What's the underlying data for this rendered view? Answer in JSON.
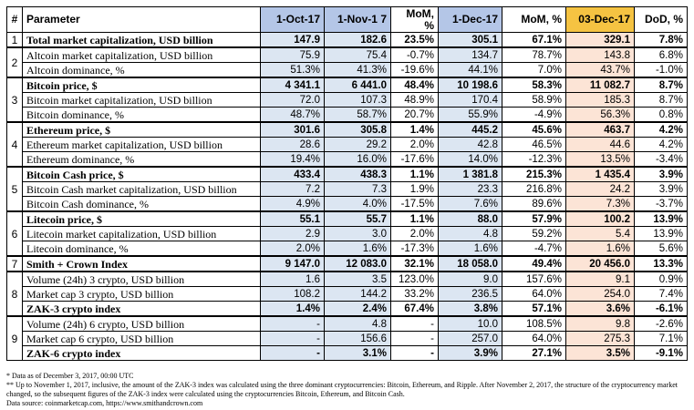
{
  "headers": [
    "#",
    "Parameter",
    "1-Oct-17",
    "1-Nov-17",
    "MoM, %",
    "1-Dec-17",
    "MoM, %",
    "03-Dec-17",
    "DoD, %"
  ],
  "header_display": [
    "#",
    "Parameter",
    "1-Oct-17",
    "1-Nov-1 7",
    "MoM, %",
    "1-Dec-17",
    "MoM, %",
    "03-Dec-17",
    "DoD, %"
  ],
  "colors": {
    "header_blue": "#b4c6e7",
    "body_blue": "#dce6f2",
    "header_orange": "#f5c342",
    "body_orange": "#fce4d6"
  },
  "groups": [
    {
      "num": "1",
      "rows": [
        {
          "param": "Total market capitalization, USD billion",
          "bold": true,
          "values": [
            "147.9",
            "182.6",
            "23.5%",
            "305.1",
            "67.1%",
            "329.1",
            "7.8%"
          ]
        }
      ]
    },
    {
      "num": "2",
      "rows": [
        {
          "param": "Altcoin market capitalization, USD billion",
          "bold": false,
          "values": [
            "75.9",
            "75.4",
            "-0.7%",
            "134.7",
            "78.7%",
            "143.8",
            "6.8%"
          ]
        },
        {
          "param": "Altcoin dominance, %",
          "bold": false,
          "values": [
            "51.3%",
            "41.3%",
            "-19.6%",
            "44.1%",
            "7.0%",
            "43.7%",
            "-1.0%"
          ]
        }
      ]
    },
    {
      "num": "3",
      "rows": [
        {
          "param": "Bitcoin price, $",
          "bold": true,
          "values": [
            "4 341.1",
            "6 441.0",
            "48.4%",
            "10 198.6",
            "58.3%",
            "11 082.7",
            "8.7%"
          ]
        },
        {
          "param": "Bitcoin market capitalization, USD billion",
          "bold": false,
          "values": [
            "72.0",
            "107.3",
            "48.9%",
            "170.4",
            "58.9%",
            "185.3",
            "8.7%"
          ]
        },
        {
          "param": "Bitcoin dominance, %",
          "bold": false,
          "values": [
            "48.7%",
            "58.7%",
            "20.7%",
            "55.9%",
            "-4.9%",
            "56.3%",
            "0.8%"
          ]
        }
      ]
    },
    {
      "num": "4",
      "rows": [
        {
          "param": "Ethereum price, $",
          "bold": true,
          "values": [
            "301.6",
            "305.8",
            "1.4%",
            "445.2",
            "45.6%",
            "463.7",
            "4.2%"
          ]
        },
        {
          "param": "Ethereum market capitalization, USD billion",
          "bold": false,
          "values": [
            "28.6",
            "29.2",
            "2.0%",
            "42.8",
            "46.5%",
            "44.6",
            "4.2%"
          ]
        },
        {
          "param": "Ethereum dominance, %",
          "bold": false,
          "values": [
            "19.4%",
            "16.0%",
            "-17.6%",
            "14.0%",
            "-12.3%",
            "13.5%",
            "-3.4%"
          ]
        }
      ]
    },
    {
      "num": "5",
      "rows": [
        {
          "param": "Bitcoin Cash price, $",
          "bold": true,
          "values": [
            "433.4",
            "438.3",
            "1.1%",
            "1 381.8",
            "215.3%",
            "1 435.4",
            "3.9%"
          ]
        },
        {
          "param": "Bitcoin Cash market capitalization, USD billion",
          "bold": false,
          "values": [
            "7.2",
            "7.3",
            "1.9%",
            "23.3",
            "216.8%",
            "24.2",
            "3.9%"
          ]
        },
        {
          "param": "Bitcoin Cash dominance, %",
          "bold": false,
          "values": [
            "4.9%",
            "4.0%",
            "-17.5%",
            "7.6%",
            "89.6%",
            "7.3%",
            "-3.7%"
          ]
        }
      ]
    },
    {
      "num": "6",
      "rows": [
        {
          "param": "Litecoin price, $",
          "bold": true,
          "values": [
            "55.1",
            "55.7",
            "1.1%",
            "88.0",
            "57.9%",
            "100.2",
            "13.9%"
          ]
        },
        {
          "param": "Litecoin market capitalization, USD billion",
          "bold": false,
          "values": [
            "2.9",
            "3.0",
            "2.0%",
            "4.8",
            "59.2%",
            "5.4",
            "13.9%"
          ]
        },
        {
          "param": "Litecoin dominance, %",
          "bold": false,
          "values": [
            "2.0%",
            "1.6%",
            "-17.3%",
            "1.6%",
            "-4.7%",
            "1.6%",
            "5.6%"
          ]
        }
      ]
    },
    {
      "num": "7",
      "rows": [
        {
          "param": "Smith + Crown Index",
          "bold": true,
          "values": [
            "9 147.0",
            "12 083.0",
            "32.1%",
            "18 058.0",
            "49.4%",
            "20 456.0",
            "13.3%"
          ]
        }
      ]
    },
    {
      "num": "8",
      "rows": [
        {
          "param": "Volume (24h) 3 crypto, USD billion",
          "bold": false,
          "values": [
            "1.6",
            "3.5",
            "123.0%",
            "9.0",
            "157.6%",
            "9.1",
            "0.9%"
          ]
        },
        {
          "param": "Market cap 3 crypto, USD billion",
          "bold": false,
          "values": [
            "108.2",
            "144.2",
            "33.2%",
            "236.5",
            "64.0%",
            "254.0",
            "7.4%"
          ]
        },
        {
          "param": "ZAK-3 crypto index",
          "bold": true,
          "values": [
            "1.4%",
            "2.4%",
            "67.4%",
            "3.8%",
            "57.1%",
            "3.6%",
            "-6.1%"
          ]
        }
      ]
    },
    {
      "num": "9",
      "rows": [
        {
          "param": "Volume (24h) 6 crypto, USD billion",
          "bold": false,
          "values": [
            "-",
            "4.8",
            "-",
            "10.0",
            "108.5%",
            "9.8",
            "-2.6%"
          ]
        },
        {
          "param": "Market cap 6 crypto, USD billion",
          "bold": false,
          "values": [
            "-",
            "156.6",
            "-",
            "257.0",
            "64.0%",
            "275.3",
            "7.1%"
          ]
        },
        {
          "param": "ZAK-6 crypto index",
          "bold": true,
          "values": [
            "-",
            "3.1%",
            "-",
            "3.9%",
            "27.1%",
            "3.5%",
            "-9.1%"
          ]
        }
      ]
    }
  ],
  "notes": [
    "* Data as of December 3, 2017, 00:00 UTC",
    "** Up to November 1, 2017, inclusive, the amount of the ZAK-3 index was calculated using the three dominant cryptocurrencies: Bitcoin, Ethereum, and Ripple. After November 2, 2017, the structure of the cryptocurrency market changed, so the subsequent figures of the ZAK-3 index were calculated using the cryptocurrencies Bitcoin, Ethereum, and Bitcoin Cash.",
    "Data source: coinmarketcap.com, https://www.smithandcrown.com"
  ]
}
